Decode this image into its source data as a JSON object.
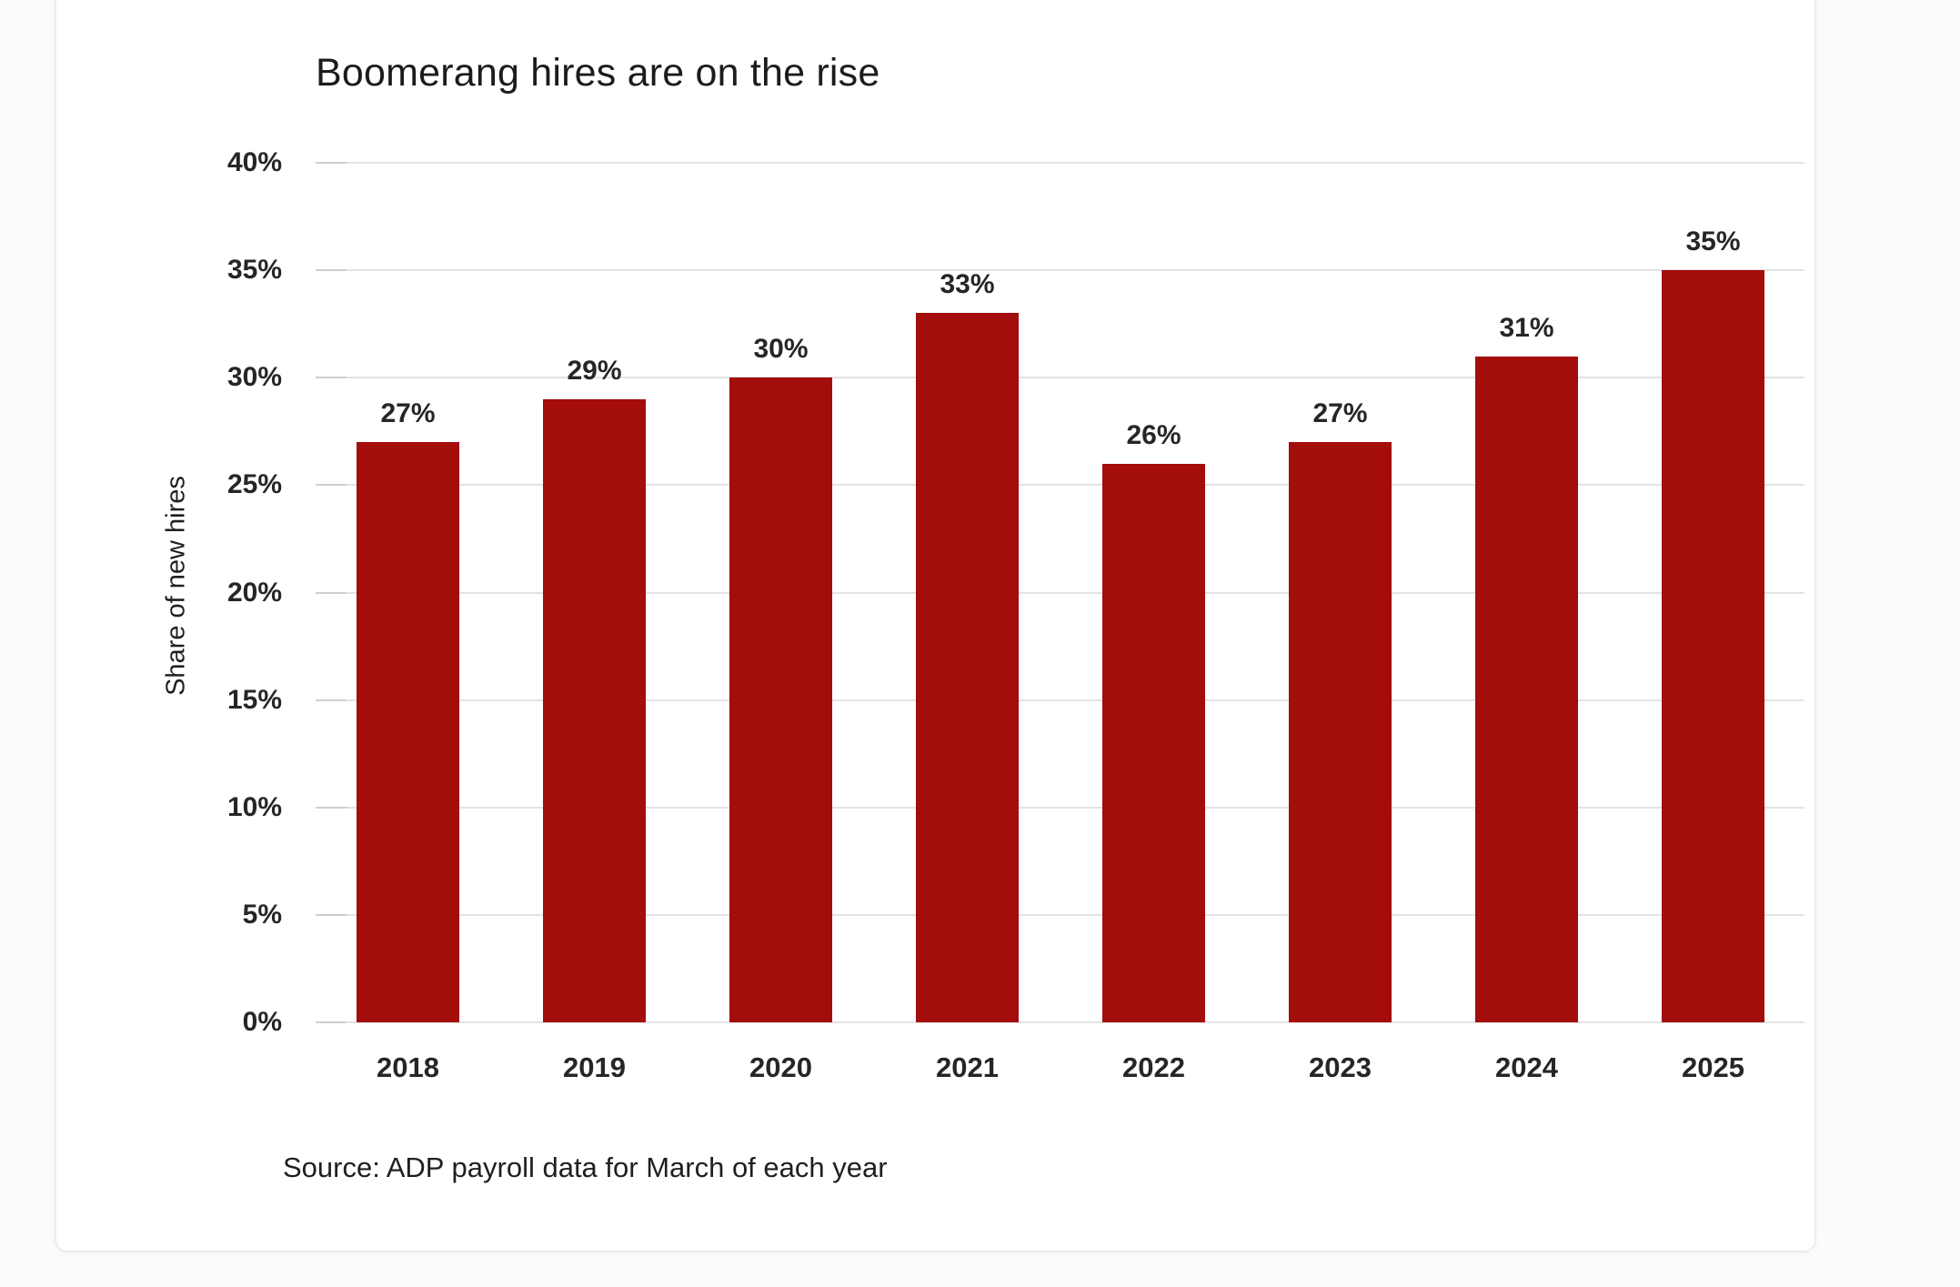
{
  "chart_data": {
    "type": "bar",
    "title": "Boomerang hires are on the rise",
    "ylabel": "Share of new hires",
    "xlabel": "",
    "categories": [
      "2018",
      "2019",
      "2020",
      "2021",
      "2022",
      "2023",
      "2024",
      "2025"
    ],
    "values": [
      27,
      29,
      30,
      33,
      26,
      27,
      31,
      35
    ],
    "data_labels": [
      "27%",
      "29%",
      "30%",
      "33%",
      "26%",
      "27%",
      "31%",
      "35%"
    ],
    "ylim": [
      0,
      40
    ],
    "ytick_values": [
      0,
      5,
      10,
      15,
      20,
      25,
      30,
      35,
      40
    ],
    "ytick_labels": [
      "0%",
      "5%",
      "10%",
      "15%",
      "20%",
      "25%",
      "30%",
      "35%",
      "40%"
    ],
    "grid": "horizontal",
    "legend": "none",
    "bar_color": "#a30d0b",
    "gridline_color": "#e3e3e3",
    "source": "Source: ADP payroll data for March of each year"
  }
}
